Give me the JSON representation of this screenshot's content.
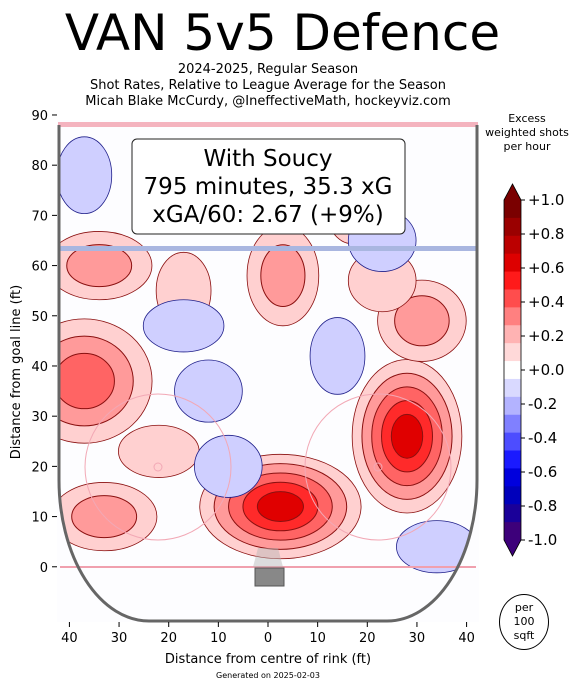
{
  "header": {
    "title": "VAN 5v5 Defence",
    "subtitle_1": "2024-2025, Regular Season",
    "subtitle_2": "Shot Rates, Relative to League Average for the Season",
    "subtitle_3": "Micah Blake McCurdy, @IneffectiveMath, hockeyviz.com"
  },
  "info_box": {
    "line1": "With Soucy",
    "line2": "795 minutes, 35.3 xG",
    "line3": "xGA/60: 2.67 (+9%)"
  },
  "colorbar": {
    "title_lines": [
      "Excess",
      "weighted shots",
      "per hour"
    ],
    "ticks": [
      "+1.0",
      "+0.8",
      "+0.6",
      "+0.4",
      "+0.2",
      "+0.0",
      "-0.2",
      "-0.4",
      "-0.6",
      "-0.8",
      "-1.0"
    ],
    "colors": [
      "#7a0000",
      "#9a0000",
      "#bb0000",
      "#dd0000",
      "#ff1a1a",
      "#ff4d4d",
      "#ff8080",
      "#ffb3b3",
      "#ffd9d9",
      "#ffffff",
      "#d9d9ff",
      "#b3b3ff",
      "#8080ff",
      "#4d4dff",
      "#1a1aff",
      "#0000dd",
      "#0000bb",
      "#1a0099",
      "#3d007a"
    ]
  },
  "badge": {
    "line1": "per",
    "line2": "100",
    "line3": "sqft"
  },
  "footer": "Generated on 2025-02-03",
  "chart_data": {
    "type": "heatmap",
    "xlabel": "Distance from centre of rink (ft)",
    "ylabel": "Distance from goal line (ft)",
    "xlim": [
      -42.5,
      42.5
    ],
    "ylim": [
      -11,
      89
    ],
    "x_ticks": [
      -40,
      -30,
      -20,
      -10,
      0,
      10,
      20,
      30,
      40
    ],
    "x_tick_labels": [
      "40",
      "30",
      "20",
      "10",
      "0",
      "10",
      "20",
      "30",
      "40"
    ],
    "y_ticks": [
      0,
      10,
      20,
      30,
      40,
      50,
      60,
      70,
      80,
      90
    ],
    "y_tick_labels": [
      "0",
      "10",
      "20",
      "30",
      "40",
      "50",
      "60",
      "70",
      "80",
      "90"
    ],
    "value_range": [
      -1.0,
      1.0
    ],
    "blobs": [
      {
        "x": 2.5,
        "y": 12,
        "peak": 0.9,
        "level": "hot"
      },
      {
        "x": 28,
        "y": 26,
        "peak": 1.0,
        "level": "hot"
      },
      {
        "x": -37,
        "y": 37,
        "peak": 0.7,
        "level": "hot"
      },
      {
        "x": -34,
        "y": 60,
        "peak": 0.4,
        "level": "warm"
      },
      {
        "x": 3,
        "y": 58,
        "peak": 0.4,
        "level": "warm"
      },
      {
        "x": 31,
        "y": 49,
        "peak": 0.4,
        "level": "warm"
      },
      {
        "x": -33,
        "y": 10,
        "peak": 0.4,
        "level": "warm"
      },
      {
        "x": -17,
        "y": 55,
        "peak": 0.2,
        "level": "mild"
      },
      {
        "x": 23,
        "y": 57,
        "peak": 0.2,
        "level": "mild"
      },
      {
        "x": -22,
        "y": 23,
        "peak": 0.2,
        "level": "mild"
      },
      {
        "x": 17,
        "y": 72,
        "peak": 0.2,
        "level": "mild"
      },
      {
        "x": -12,
        "y": 35,
        "peak": -0.2,
        "level": "cool"
      },
      {
        "x": -17,
        "y": 48,
        "peak": -0.3,
        "level": "cool"
      },
      {
        "x": 14,
        "y": 42,
        "peak": -0.3,
        "level": "cool"
      },
      {
        "x": 23,
        "y": 65,
        "peak": -0.2,
        "level": "cool"
      },
      {
        "x": 34,
        "y": 4,
        "peak": -0.2,
        "level": "cool"
      },
      {
        "x": -37,
        "y": 78,
        "peak": -0.2,
        "level": "cool"
      },
      {
        "x": -8,
        "y": 20,
        "peak": -0.1,
        "level": "cool"
      }
    ]
  }
}
